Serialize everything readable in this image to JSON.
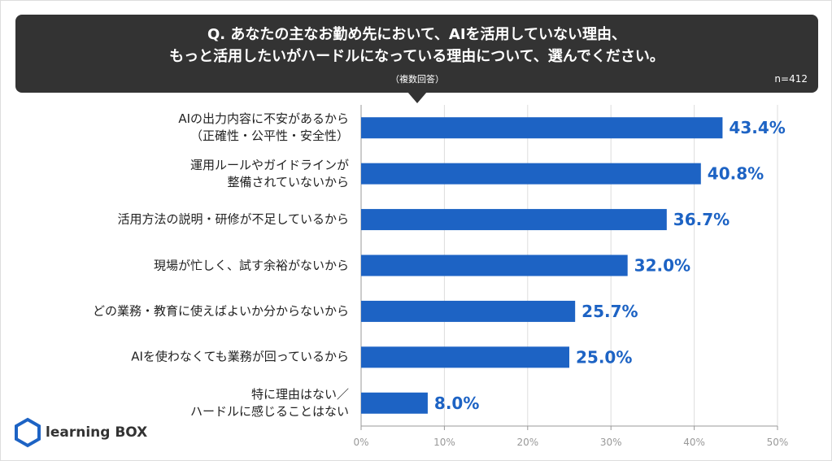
{
  "chart_data": {
    "type": "bar",
    "orientation": "horizontal",
    "title": "Q. あなたの主なお勤め先において、AIを活用していない理由、\nもっと活用したいがハードルになっている理由について、選んでください。",
    "subtitle": "（複数回答）",
    "sample_size": "n=412",
    "categories": [
      "AIの出力内容に不安があるから\n（正確性・公平性・安全性）",
      "運用ルールやガイドラインが\n整備されていないから",
      "活用方法の説明・研修が不足しているから",
      "現場が忙しく、試す余裕がないから",
      "どの業務・教育に使えばよいか分からないから",
      "AIを使わなくても業務が回っているから",
      "特に理由はない／\nハードルに感じることはない"
    ],
    "values": [
      43.4,
      40.8,
      36.7,
      32.0,
      25.7,
      25.0,
      8.0
    ],
    "value_labels": [
      "43.4%",
      "40.8%",
      "36.7%",
      "32.0%",
      "25.7%",
      "25.0%",
      "8.0%"
    ],
    "color": "#1d63c4",
    "xlim": [
      0,
      50
    ],
    "xticks": [
      {
        "value": 0,
        "label": "0%"
      },
      {
        "value": 10,
        "label": "10%"
      },
      {
        "value": 20,
        "label": "20%"
      },
      {
        "value": 30,
        "label": "30%"
      },
      {
        "value": 40,
        "label": "40%"
      },
      {
        "value": 50,
        "label": "50%"
      }
    ],
    "grid": true
  },
  "logo": "learning BOX"
}
